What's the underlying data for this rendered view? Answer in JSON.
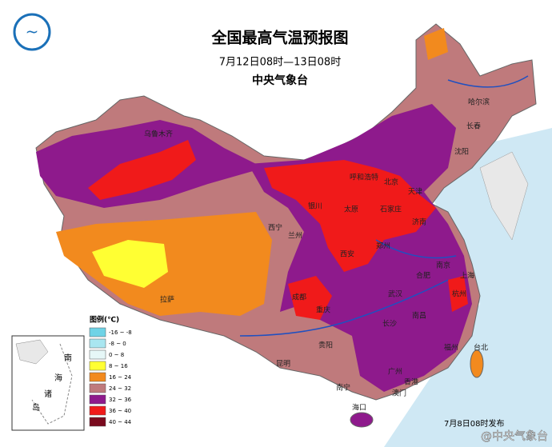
{
  "header": {
    "title": "全国最高气温预报图",
    "subtitle": "7月12日08时—13日08时",
    "issuer": "中央气象台"
  },
  "legend": {
    "title": "图例(℃)",
    "items": [
      {
        "label": "-16 ~ -8",
        "color": "#6fd3e6"
      },
      {
        "label": "-8 ~ 0",
        "color": "#a9e6f0"
      },
      {
        "label": "0 ~ 8",
        "color": "#e6f7f7"
      },
      {
        "label": "8 ~ 16",
        "color": "#ffff33"
      },
      {
        "label": "16 ~ 24",
        "color": "#f28a1e"
      },
      {
        "label": "24 ~ 32",
        "color": "#bf7a7c"
      },
      {
        "label": "32 ~ 36",
        "color": "#8e1a8c"
      },
      {
        "label": "36 ~ 40",
        "color": "#f01a1a"
      },
      {
        "label": "40 ~ 44",
        "color": "#7a0a1e"
      }
    ]
  },
  "inset": {
    "labels": [
      "南",
      "海",
      "诸",
      "岛"
    ]
  },
  "cities": [
    "乌鲁木齐",
    "哈尔滨",
    "长春",
    "沈阳",
    "呼和浩特",
    "北京",
    "天津",
    "石家庄",
    "太原",
    "银川",
    "西宁",
    "兰州",
    "西安",
    "郑州",
    "济南",
    "合肥",
    "南京",
    "上海",
    "杭州",
    "武汉",
    "长沙",
    "南昌",
    "福州",
    "台北",
    "成都",
    "重庆",
    "贵阳",
    "昆明",
    "南宁",
    "广州",
    "香港",
    "澳门",
    "海口",
    "拉萨"
  ],
  "footer": {
    "issued": "7月8日08时发布",
    "watermark": "@中央气象台"
  }
}
